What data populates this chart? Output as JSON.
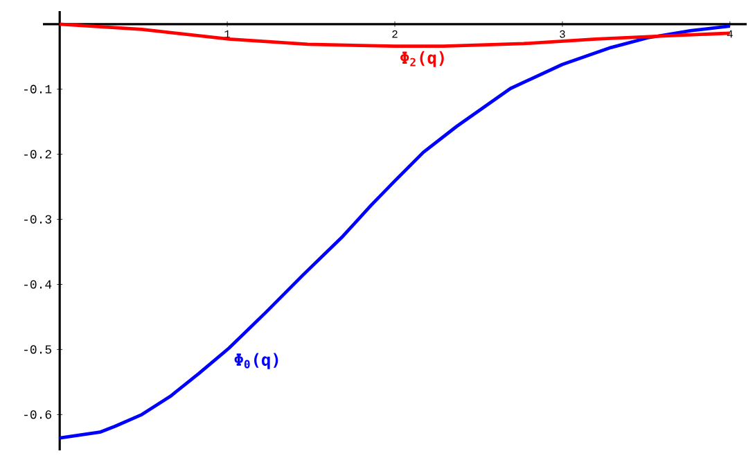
{
  "chart_data": {
    "type": "line",
    "xlim": [
      -0.1,
      4.1
    ],
    "ylim": [
      -0.655,
      0.02
    ],
    "xticks": [
      1,
      2,
      3,
      4
    ],
    "yticks": [
      -0.1,
      -0.2,
      -0.3,
      -0.4,
      -0.5,
      -0.6
    ],
    "series": [
      {
        "name": "Φ$_{0}$(q)",
        "color": "#0000ff",
        "x": [
          0,
          0.24,
          0.33,
          0.49,
          0.66,
          0.83,
          1.01,
          1.23,
          1.45,
          1.69,
          1.86,
          2.0,
          2.17,
          2.37,
          2.69,
          3.0,
          3.29,
          3.51,
          3.77,
          4.0
        ],
        "values": [
          -0.636,
          -0.627,
          -0.618,
          -0.6,
          -0.572,
          -0.537,
          -0.498,
          -0.443,
          -0.386,
          -0.326,
          -0.278,
          -0.241,
          -0.197,
          -0.157,
          -0.099,
          -0.062,
          -0.036,
          -0.021,
          -0.01,
          -0.003
        ]
      },
      {
        "name": "Φ$_{2}$(q)",
        "color": "#ff0000",
        "x": [
          0,
          0.49,
          1.01,
          1.48,
          2.0,
          2.29,
          2.77,
          3.2,
          3.63,
          4.0
        ],
        "values": [
          0,
          -0.008,
          -0.023,
          -0.031,
          -0.034,
          -0.034,
          -0.03,
          -0.023,
          -0.018,
          -0.014
        ]
      }
    ]
  }
}
